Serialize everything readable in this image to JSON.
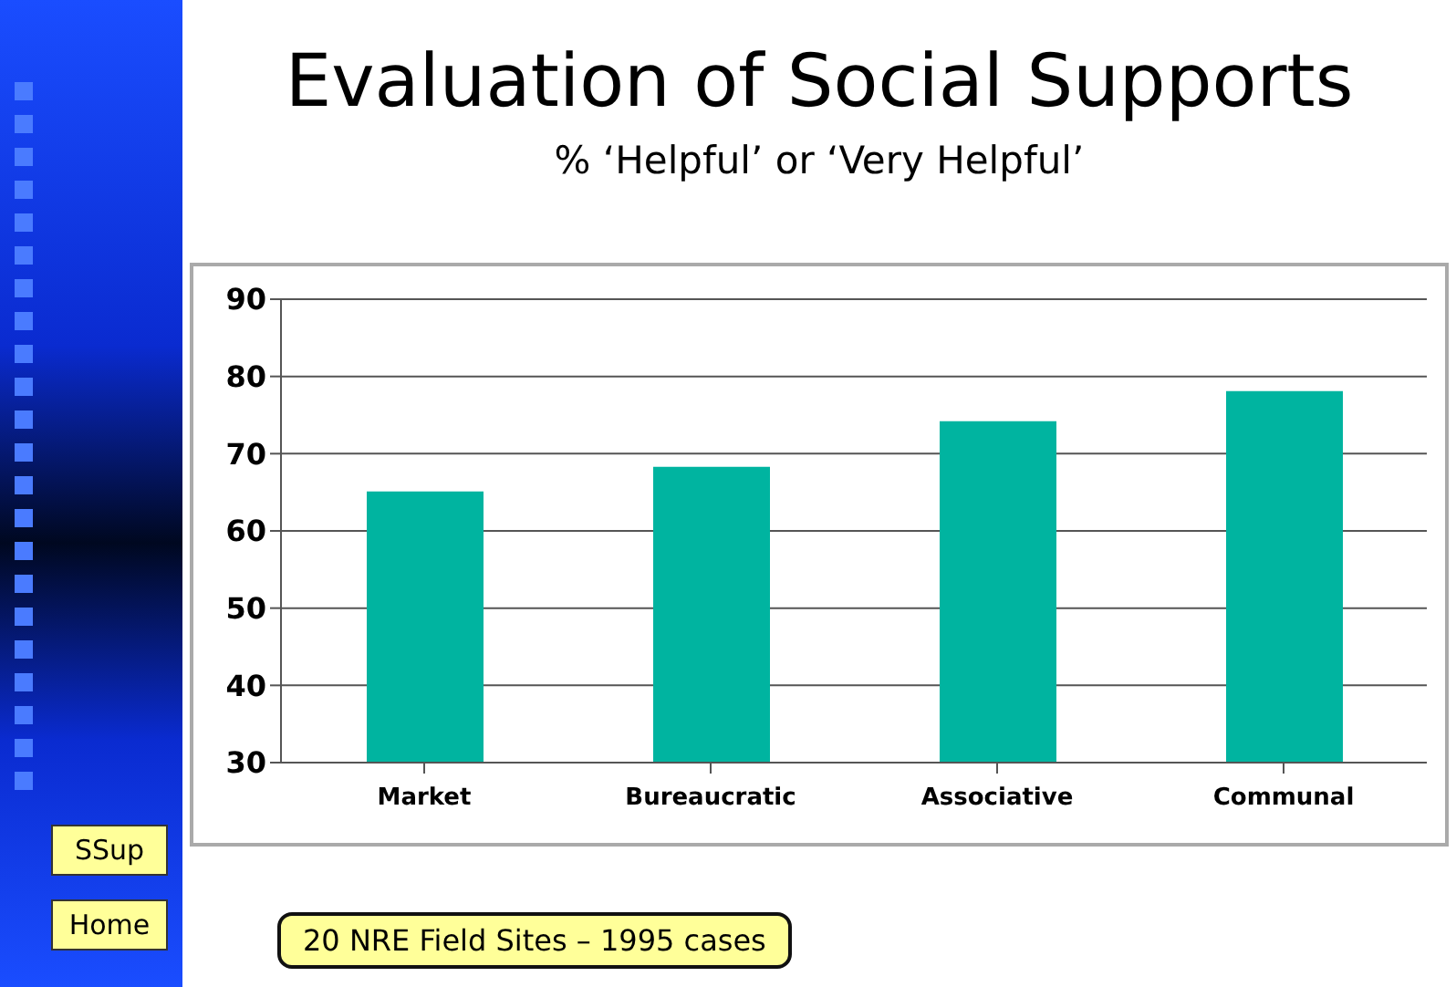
{
  "chart_data": {
    "type": "bar",
    "title": "Evaluation of Social Supports",
    "subtitle": "% ‘Helpful’ or ‘Very Helpful’",
    "categories": [
      "Market",
      "Bureaucratic",
      "Associative",
      "Communal"
    ],
    "values": [
      65.1,
      68.3,
      74.2,
      78.1
    ],
    "color": "#00b4a0",
    "ylim": [
      30,
      90
    ],
    "yticks": [
      30,
      40,
      50,
      60,
      70,
      80,
      90
    ],
    "grid": "y",
    "annotations": [
      "20 NRE Field Sites – 1995 cases",
      "SSup",
      "Home"
    ]
  }
}
